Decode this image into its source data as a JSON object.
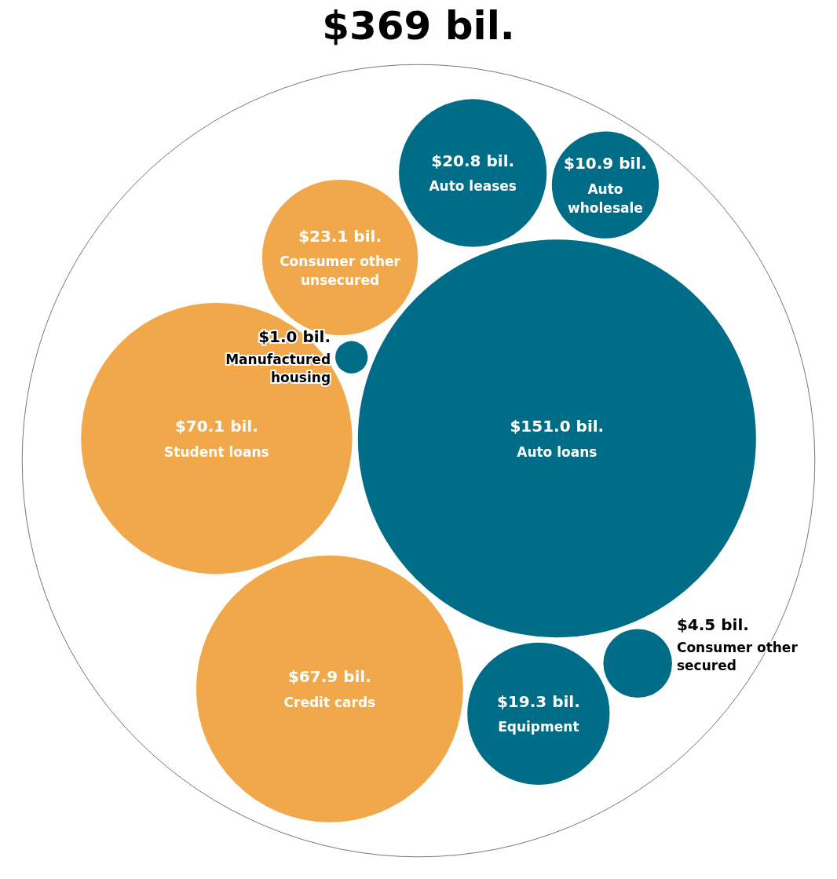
{
  "chart_data": {
    "type": "other",
    "title": "$369 bil.",
    "categories": [
      "Auto loans",
      "Student loans",
      "Credit cards",
      "Consumer other unsecured",
      "Auto leases",
      "Equipment",
      "Auto wholesale",
      "Consumer other secured",
      "Manufactured housing"
    ],
    "values": [
      151.0,
      70.1,
      67.9,
      23.1,
      20.8,
      19.3,
      10.9,
      4.5,
      1.0
    ],
    "value_labels": [
      "$151.0 bil.",
      "$70.1 bil.",
      "$67.9 bil.",
      "$23.1 bil.",
      "$20.8 bil.",
      "$19.3 bil.",
      "$10.9 bil.",
      "$4.5 bil.",
      "$1.0 bil."
    ],
    "colors": [
      "#006d88",
      "#f0a84a",
      "#f0a84a",
      "#f0a84a",
      "#006d88",
      "#006d88",
      "#006d88",
      "#006d88",
      "#006d88"
    ]
  }
}
